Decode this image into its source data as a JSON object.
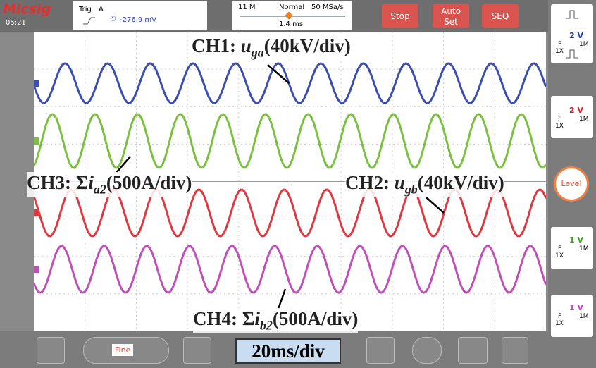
{
  "header": {
    "brand": "Micsig",
    "time": "05:21",
    "trig_label": "Trig",
    "trig_source": "A",
    "trig_channel": "①",
    "trig_level": "-276.9 mV",
    "memory": "11 M",
    "mode": "Normal",
    "sample_rate": "50 MSa/s",
    "delay": "1.4 ms"
  },
  "buttons": {
    "stop": "Stop",
    "auto": "Auto",
    "set": "Set",
    "seq": "SEQ",
    "level": "Level"
  },
  "channels": [
    {
      "scale": "2 V",
      "coupling": "F",
      "impedance": "1M",
      "probe": "1X"
    },
    {
      "scale": "2 V",
      "coupling": "F",
      "impedance": "1M",
      "probe": "1X"
    },
    {
      "scale": "1 V",
      "coupling": "F",
      "impedance": "1M",
      "probe": "1X"
    },
    {
      "scale": "1 V",
      "coupling": "F",
      "impedance": "1M",
      "probe": "1X"
    }
  ],
  "annotations": [
    {
      "prefix": "CH1: ",
      "var": "u",
      "sub": "ga",
      "suffix": "(40kV/div)"
    },
    {
      "prefix": "CH3: Σ",
      "var": "i",
      "sub": "a2",
      "suffix": "(500A/div)"
    },
    {
      "prefix": "CH2: ",
      "var": "u",
      "sub": "gb",
      "suffix": "(40kV/div)"
    },
    {
      "prefix": "CH4: Σ",
      "var": "i",
      "sub": "b2",
      "suffix": "(500A/div)"
    }
  ],
  "footer": {
    "fine": "Fine",
    "timebase": "20ms/div"
  }
}
